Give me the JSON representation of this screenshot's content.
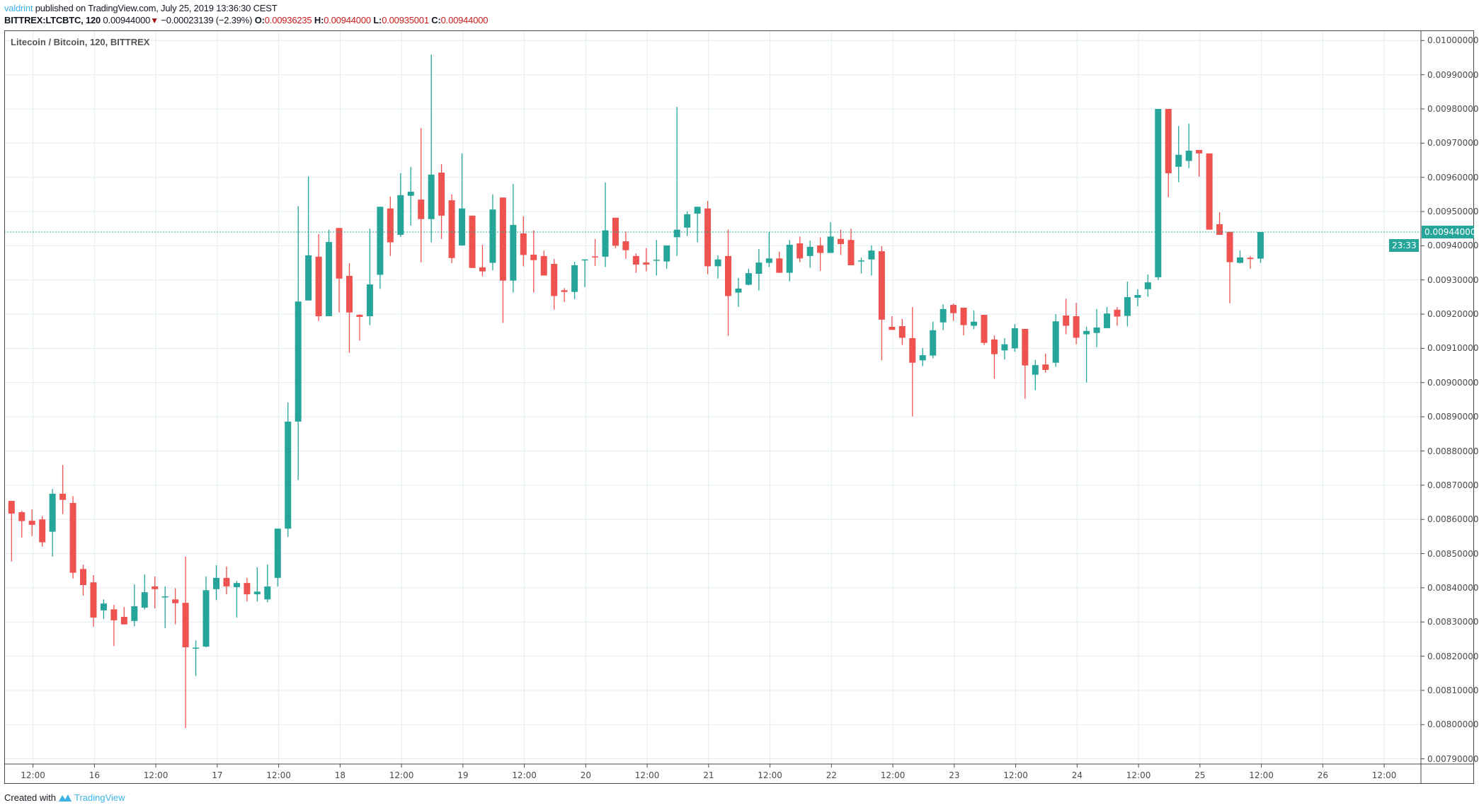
{
  "header": {
    "user": "valdrint",
    "published": "published on TradingView.com, July 25, 2019 13:36:30 CEST",
    "symbol": "BITTREX:LTCBTC, 120",
    "last": "0.00944000",
    "change": "−0.00023139 (−2.39%)",
    "change_direction": "down",
    "o_label": "O:",
    "o": "0.00936235",
    "h_label": "H:",
    "h": "0.00944000",
    "l_label": "L:",
    "l": "0.00935001",
    "c_label": "C:",
    "c": "0.00944000"
  },
  "footer": {
    "created_with": "Created with",
    "brand": "TradingView"
  },
  "colors": {
    "up": "#26a69a",
    "down": "#ef5350",
    "grid": "#e1ecf2",
    "accent": "#3bb3e4"
  },
  "chart_data": {
    "type": "candlestick",
    "title": "Litecoin / Bitcoin, 120, BITTREX",
    "interval_minutes": 120,
    "ylim": [
      0.0079,
      0.01
    ],
    "grid": true,
    "y_ticks": [
      "0.01000000",
      "0.00990000",
      "0.00980000",
      "0.00970000",
      "0.00960000",
      "0.00950000",
      "0.00940000",
      "0.00930000",
      "0.00920000",
      "0.00910000",
      "0.00900000",
      "0.00890000",
      "0.00880000",
      "0.00870000",
      "0.00860000",
      "0.00850000",
      "0.00840000",
      "0.00830000",
      "0.00820000",
      "0.00810000",
      "0.00800000",
      "0.00790000"
    ],
    "x_ticks": [
      "12:00",
      "16",
      "12:00",
      "17",
      "12:00",
      "18",
      "12:00",
      "19",
      "12:00",
      "20",
      "12:00",
      "21",
      "12:00",
      "22",
      "12:00",
      "23",
      "12:00",
      "24",
      "12:00",
      "25",
      "12:00",
      "26",
      "12:00"
    ],
    "last_price_label": "0.00944000",
    "countdown": "23:33",
    "ohlc": [
      [
        0.008654,
        0.008654,
        0.008477,
        0.008617
      ],
      [
        0.008621,
        0.008625,
        0.008547,
        0.008595
      ],
      [
        0.008596,
        0.008629,
        0.008551,
        0.008584
      ],
      [
        0.0086,
        0.00861,
        0.00852,
        0.008533
      ],
      [
        0.008564,
        0.008689,
        0.008491,
        0.008675
      ],
      [
        0.008675,
        0.008759,
        0.008615,
        0.008657
      ],
      [
        0.008648,
        0.008668,
        0.008427,
        0.008444
      ],
      [
        0.008455,
        0.008468,
        0.008377,
        0.008408
      ],
      [
        0.008416,
        0.008437,
        0.008286,
        0.008313
      ],
      [
        0.008334,
        0.008366,
        0.008309,
        0.008354
      ],
      [
        0.008337,
        0.00835,
        0.00823,
        0.008305
      ],
      [
        0.008315,
        0.008344,
        0.008293,
        0.008293
      ],
      [
        0.008303,
        0.00841,
        0.008288,
        0.008346
      ],
      [
        0.008342,
        0.008439,
        0.008336,
        0.008387
      ],
      [
        0.008404,
        0.008433,
        0.00834,
        0.008396
      ],
      [
        0.008374,
        0.008404,
        0.008282,
        0.008375
      ],
      [
        0.008366,
        0.008399,
        0.008293,
        0.008355
      ],
      [
        0.008356,
        0.008491,
        0.00799,
        0.008226
      ],
      [
        0.008222,
        0.008246,
        0.008142,
        0.008225
      ],
      [
        0.008228,
        0.008433,
        0.008226,
        0.008393
      ],
      [
        0.008396,
        0.008466,
        0.008364,
        0.008429
      ],
      [
        0.008429,
        0.008462,
        0.008381,
        0.008404
      ],
      [
        0.008402,
        0.00842,
        0.008313,
        0.008414
      ],
      [
        0.008414,
        0.008429,
        0.00836,
        0.008381
      ],
      [
        0.008381,
        0.00846,
        0.00836,
        0.008389
      ],
      [
        0.008366,
        0.008468,
        0.008358,
        0.008404
      ],
      [
        0.008429,
        0.008573,
        0.008404,
        0.008573
      ],
      [
        0.008573,
        0.008942,
        0.008549,
        0.008886
      ],
      [
        0.008886,
        0.009516,
        0.008715,
        0.009237
      ],
      [
        0.00924,
        0.009603,
        0.00924,
        0.009372
      ],
      [
        0.009368,
        0.009434,
        0.00918,
        0.009194
      ],
      [
        0.009194,
        0.009447,
        0.009194,
        0.009411
      ],
      [
        0.009452,
        0.009452,
        0.009205,
        0.009304
      ],
      [
        0.009312,
        0.009349,
        0.009087,
        0.009205
      ],
      [
        0.009198,
        0.0092,
        0.009123,
        0.009192
      ],
      [
        0.009194,
        0.00945,
        0.009168,
        0.009287
      ],
      [
        0.009315,
        0.009514,
        0.009274,
        0.009514
      ],
      [
        0.009509,
        0.009544,
        0.00937,
        0.00941
      ],
      [
        0.009432,
        0.009612,
        0.009426,
        0.009548
      ],
      [
        0.009546,
        0.00963,
        0.009459,
        0.009558
      ],
      [
        0.009535,
        0.009744,
        0.009352,
        0.009478
      ],
      [
        0.009478,
        0.009959,
        0.00941,
        0.009608
      ],
      [
        0.009614,
        0.009639,
        0.00942,
        0.009488
      ],
      [
        0.009533,
        0.00955,
        0.009349,
        0.009364
      ],
      [
        0.009401,
        0.00967,
        0.0094,
        0.009509
      ],
      [
        0.009488,
        0.009488,
        0.009335,
        0.009335
      ],
      [
        0.009337,
        0.009403,
        0.009311,
        0.009325
      ],
      [
        0.00935,
        0.00955,
        0.009328,
        0.009506
      ],
      [
        0.009541,
        0.009541,
        0.009174,
        0.009298
      ],
      [
        0.009298,
        0.009581,
        0.009263,
        0.009461
      ],
      [
        0.009436,
        0.009486,
        0.00934,
        0.009373
      ],
      [
        0.009374,
        0.009445,
        0.009263,
        0.009358
      ],
      [
        0.00937,
        0.009386,
        0.009313,
        0.009313
      ],
      [
        0.009347,
        0.009361,
        0.009213,
        0.009253
      ],
      [
        0.00927,
        0.009276,
        0.009236,
        0.009265
      ],
      [
        0.009265,
        0.009353,
        0.009244,
        0.009343
      ],
      [
        0.009357,
        0.00936,
        0.009279,
        0.00936
      ],
      [
        0.009369,
        0.00942,
        0.009341,
        0.009366
      ],
      [
        0.009368,
        0.009585,
        0.009338,
        0.009445
      ],
      [
        0.009482,
        0.009482,
        0.009393,
        0.0094
      ],
      [
        0.009413,
        0.009442,
        0.009362,
        0.009387
      ],
      [
        0.00937,
        0.009378,
        0.009321,
        0.009345
      ],
      [
        0.009351,
        0.009393,
        0.009325,
        0.009345
      ],
      [
        0.009358,
        0.009417,
        0.009313,
        0.009359
      ],
      [
        0.009354,
        0.009401,
        0.009333,
        0.009401
      ],
      [
        0.009425,
        0.009806,
        0.00937,
        0.009447
      ],
      [
        0.009453,
        0.0095,
        0.009428,
        0.009492
      ],
      [
        0.009494,
        0.009514,
        0.00941,
        0.009514
      ],
      [
        0.009509,
        0.009531,
        0.009317,
        0.00934
      ],
      [
        0.00934,
        0.009372,
        0.009304,
        0.00936
      ],
      [
        0.00937,
        0.009447,
        0.009137,
        0.009253
      ],
      [
        0.009263,
        0.009306,
        0.009221,
        0.009275
      ],
      [
        0.009286,
        0.009333,
        0.009284,
        0.00932
      ],
      [
        0.009318,
        0.00939,
        0.009269,
        0.009351
      ],
      [
        0.00935,
        0.00944,
        0.009338,
        0.009363
      ],
      [
        0.009363,
        0.009383,
        0.009321,
        0.009321
      ],
      [
        0.009321,
        0.009417,
        0.009296,
        0.009403
      ],
      [
        0.009407,
        0.009427,
        0.009352,
        0.009363
      ],
      [
        0.00937,
        0.009415,
        0.009336,
        0.009397
      ],
      [
        0.009401,
        0.009425,
        0.009327,
        0.009379
      ],
      [
        0.009379,
        0.009469,
        0.009379,
        0.009427
      ],
      [
        0.00942,
        0.009447,
        0.009373,
        0.009405
      ],
      [
        0.009417,
        0.00945,
        0.009343,
        0.009343
      ],
      [
        0.009356,
        0.009365,
        0.009319,
        0.009357
      ],
      [
        0.00936,
        0.009401,
        0.009313,
        0.009386
      ],
      [
        0.009384,
        0.009399,
        0.009065,
        0.009184
      ],
      [
        0.009163,
        0.009194,
        0.009154,
        0.009154
      ],
      [
        0.009165,
        0.009186,
        0.00911,
        0.009131
      ],
      [
        0.00913,
        0.009221,
        0.008901,
        0.009058
      ],
      [
        0.009065,
        0.009101,
        0.009048,
        0.00908
      ],
      [
        0.009079,
        0.009178,
        0.009071,
        0.009153
      ],
      [
        0.009176,
        0.009229,
        0.009153,
        0.009215
      ],
      [
        0.009227,
        0.009231,
        0.00918,
        0.009203
      ],
      [
        0.009219,
        0.009219,
        0.009138,
        0.009168
      ],
      [
        0.009166,
        0.009211,
        0.009156,
        0.009178
      ],
      [
        0.009198,
        0.009198,
        0.00911,
        0.009116
      ],
      [
        0.009126,
        0.009138,
        0.009011,
        0.009083
      ],
      [
        0.009094,
        0.00913,
        0.009067,
        0.009112
      ],
      [
        0.0091,
        0.009171,
        0.00909,
        0.009159
      ],
      [
        0.009157,
        0.009157,
        0.008953,
        0.00905
      ],
      [
        0.009023,
        0.009066,
        0.008978,
        0.009051
      ],
      [
        0.009053,
        0.009085,
        0.009029,
        0.009037
      ],
      [
        0.009058,
        0.0092,
        0.009046,
        0.009179
      ],
      [
        0.009196,
        0.009245,
        0.009141,
        0.009166
      ],
      [
        0.009194,
        0.009233,
        0.009112,
        0.009131
      ],
      [
        0.009141,
        0.009163,
        0.009,
        0.009151
      ],
      [
        0.009145,
        0.009215,
        0.009103,
        0.009161
      ],
      [
        0.009159,
        0.009221,
        0.009159,
        0.009202
      ],
      [
        0.009213,
        0.009221,
        0.009166,
        0.009193
      ],
      [
        0.009195,
        0.009295,
        0.009164,
        0.00925
      ],
      [
        0.009248,
        0.009273,
        0.009223,
        0.009256
      ],
      [
        0.009273,
        0.009316,
        0.009251,
        0.009293
      ],
      [
        0.009308,
        0.0098,
        0.0093,
        0.0098
      ],
      [
        0.0098,
        0.0098,
        0.009542,
        0.009612
      ],
      [
        0.009631,
        0.00975,
        0.009586,
        0.009666
      ],
      [
        0.009648,
        0.009757,
        0.009627,
        0.009678
      ],
      [
        0.00968,
        0.00968,
        0.009602,
        0.00967
      ],
      [
        0.00967,
        0.00967,
        0.009447,
        0.009447
      ],
      [
        0.009463,
        0.009498,
        0.009432,
        0.009432
      ],
      [
        0.009441,
        0.009441,
        0.009232,
        0.009352
      ],
      [
        0.00935,
        0.009386,
        0.009348,
        0.009366
      ],
      [
        0.009365,
        0.00937,
        0.009333,
        0.009361
      ],
      [
        0.00936235,
        0.00944,
        0.00935001,
        0.00944
      ]
    ]
  }
}
